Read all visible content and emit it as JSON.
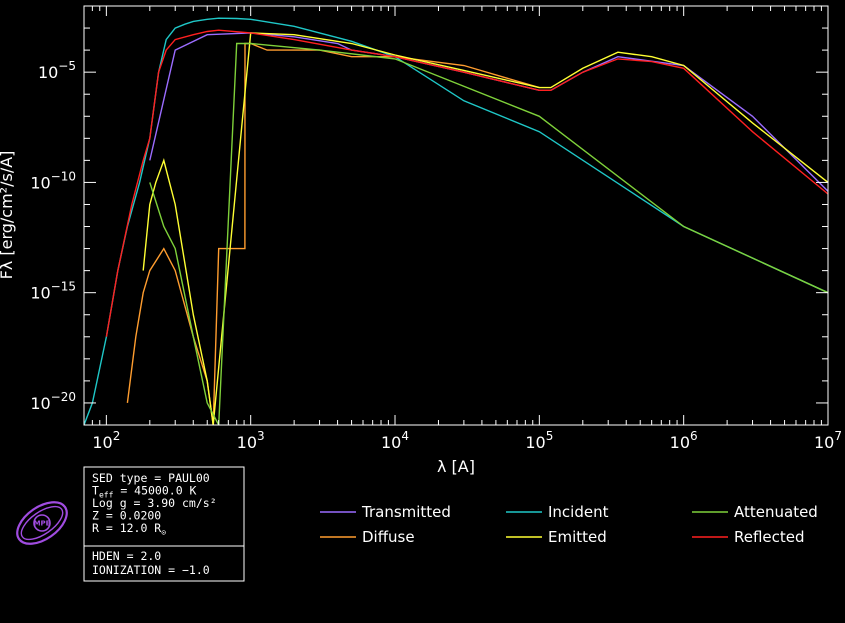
{
  "chart_data": {
    "type": "line",
    "xlabel": "λ [A]",
    "ylabel": "Fλ [erg/cm²/s/A]",
    "x_scale": "log",
    "y_scale": "log",
    "xlim": [
      70,
      10000000
    ],
    "ylim": [
      1e-21,
      0.01
    ],
    "x_ticks": [
      {
        "value": 100,
        "base": "10",
        "exp": "2"
      },
      {
        "value": 1000,
        "base": "10",
        "exp": "3"
      },
      {
        "value": 10000,
        "base": "10",
        "exp": "4"
      },
      {
        "value": 100000,
        "base": "10",
        "exp": "5"
      },
      {
        "value": 1000000,
        "base": "10",
        "exp": "6"
      },
      {
        "value": 10000000,
        "base": "10",
        "exp": "7"
      }
    ],
    "y_ticks": [
      {
        "value": 1e-05,
        "base": "10",
        "exp": "−5"
      },
      {
        "value": 1e-10,
        "base": "10",
        "exp": "−10"
      },
      {
        "value": 1e-15,
        "base": "10",
        "exp": "−15"
      },
      {
        "value": 1e-20,
        "base": "10",
        "exp": "−20"
      }
    ],
    "series": [
      {
        "name": "Incident",
        "color": "#1fc7c7",
        "x": [
          70,
          80,
          100,
          120,
          140,
          170,
          200,
          230,
          260,
          300,
          350,
          400,
          500,
          600,
          800,
          1000,
          2000,
          5000,
          10000,
          30000,
          100000,
          1000000,
          10000000
        ],
        "y": [
          1e-21,
          1e-20,
          1e-17,
          1e-14,
          1e-12,
          1e-10,
          1e-08,
          1e-05,
          0.0003,
          0.001,
          0.0015,
          0.002,
          0.0025,
          0.0028,
          0.0027,
          0.0025,
          0.0012,
          0.00025,
          5e-05,
          5e-07,
          2e-08,
          1e-12,
          1e-15
        ]
      },
      {
        "name": "Transmitted",
        "color": "#9b6cff",
        "x": [
          200,
          300,
          500,
          1000,
          2000,
          4000,
          5000,
          10000,
          30000,
          100000,
          120000,
          200000,
          350000,
          1000000,
          3000000,
          10000000
        ],
        "y": [
          1e-09,
          0.0001,
          0.0005,
          0.0006,
          0.0004,
          0.0002,
          0.0001,
          5e-05,
          1e-05,
          1.5e-06,
          1.5e-06,
          1e-05,
          5e-05,
          2e-05,
          1e-07,
          4e-11
        ]
      },
      {
        "name": "Diffuse",
        "color": "#ff9d2f",
        "x": [
          140,
          160,
          180,
          200,
          250,
          300,
          400,
          500,
          550,
          600,
          912,
          913,
          1000,
          1300,
          3000,
          5000,
          10000,
          30000,
          100000
        ],
        "y": [
          1e-20,
          1e-17,
          1e-15,
          1e-14,
          1e-13,
          1e-14,
          1e-17,
          1e-19,
          1e-21,
          1e-13,
          1e-13,
          0.0002,
          0.0002,
          0.0001,
          0.0001,
          5e-05,
          5e-05,
          2e-05,
          2e-06
        ]
      },
      {
        "name": "Emitted",
        "color": "#ffff33",
        "x": [
          180,
          200,
          220,
          250,
          300,
          400,
          500,
          550,
          1000,
          2000,
          5000,
          10000,
          30000,
          100000,
          120000,
          200000,
          350000,
          600000,
          1000000,
          3000000,
          10000000
        ],
        "y": [
          1e-14,
          1e-11,
          1e-10,
          1e-09,
          1e-11,
          1e-16,
          1e-19,
          1e-21,
          0.0006,
          0.0005,
          0.0002,
          6e-05,
          1.2e-05,
          2e-06,
          2e-06,
          1.5e-05,
          8e-05,
          5e-05,
          2e-05,
          5e-08,
          1e-10
        ]
      },
      {
        "name": "Attenuated",
        "color": "#7fd13a",
        "x": [
          200,
          250,
          300,
          400,
          500,
          600,
          800,
          1000,
          3000,
          10000,
          100000,
          1000000,
          10000000
        ],
        "y": [
          1e-10,
          1e-12,
          1e-13,
          1e-17,
          1e-20,
          1e-21,
          0.0002,
          0.0002,
          0.0001,
          4e-05,
          1e-07,
          1e-12,
          1e-15
        ]
      },
      {
        "name": "Reflected",
        "color": "#ff2020",
        "x": [
          100,
          120,
          150,
          180,
          200,
          230,
          260,
          300,
          400,
          500,
          600,
          1000,
          2000,
          5000,
          10000,
          30000,
          100000,
          120000,
          200000,
          350000,
          600000,
          1000000,
          3000000,
          10000000
        ],
        "y": [
          1e-17,
          1e-14,
          1e-11,
          1e-09,
          1e-08,
          1e-05,
          0.0001,
          0.0003,
          0.0005,
          0.0007,
          0.0008,
          0.0006,
          0.0003,
          0.0001,
          5e-05,
          1e-05,
          1.5e-06,
          1.5e-06,
          1e-05,
          4e-05,
          3e-05,
          1.5e-05,
          2e-08,
          3e-11
        ]
      }
    ],
    "legend_placement": "below"
  },
  "info": {
    "lines": [
      {
        "pre": "SED type = PAUL00",
        "sub": "",
        "post": ""
      },
      {
        "pre": "T",
        "sub": "eff",
        "post": " = 45000.0 K"
      },
      {
        "pre": "Log g = 3.90 cm/s²",
        "sub": "",
        "post": ""
      },
      {
        "pre": "Z = 0.0200",
        "sub": "",
        "post": ""
      },
      {
        "pre": "R = 12.0 R",
        "sub": "⊙",
        "post": ""
      }
    ],
    "lines2": [
      "HDEN = 2.0",
      "IONIZATION = −1.0"
    ]
  },
  "logo": {
    "text": "MPE",
    "color": "#a04ce0"
  }
}
